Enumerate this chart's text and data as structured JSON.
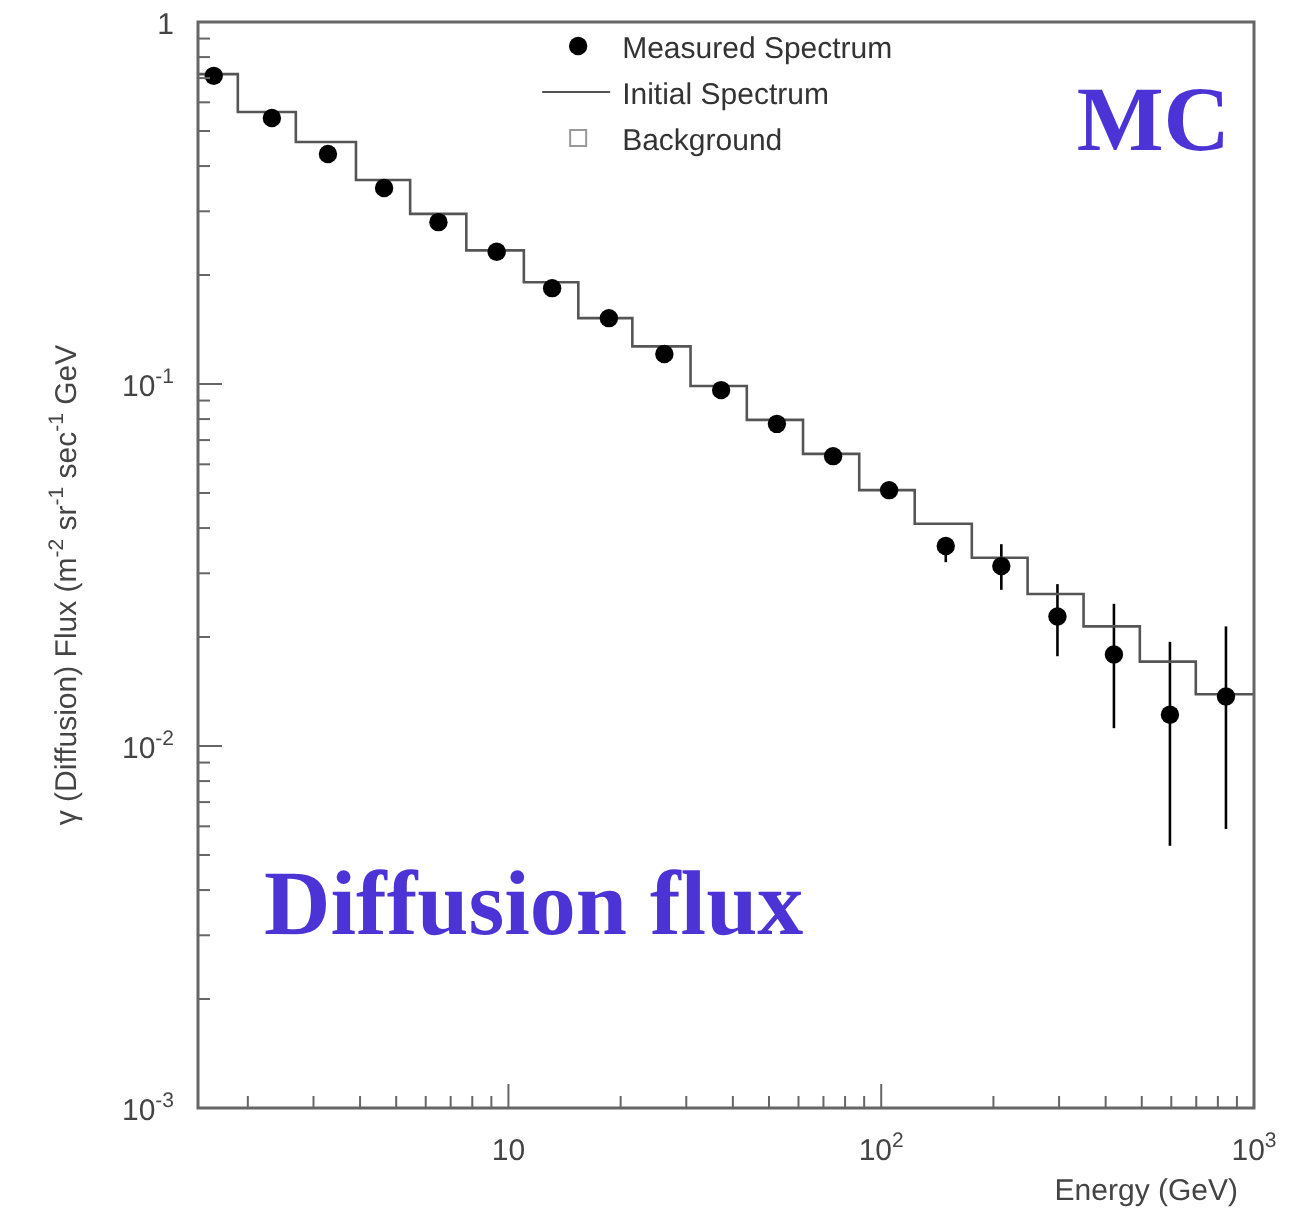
{
  "chart_data": {
    "type": "scatter",
    "xlabel": "Energy (GeV)",
    "ylabel": "γ (Diffusion) Flux (m$^{-2}$ sr$^{-1}$ sec$^{-1}$ GeV",
    "annotations": [
      "MC",
      "Diffusion flux"
    ],
    "log": "xy",
    "grid": false,
    "legend": "top right",
    "xlim": [
      1.47,
      1000
    ],
    "xticks": [
      {
        "value": 2,
        "label": null
      },
      {
        "value": 3,
        "label": null
      },
      {
        "value": 4,
        "label": null
      },
      {
        "value": 5,
        "label": null
      },
      {
        "value": 6,
        "label": null
      },
      {
        "value": 7,
        "label": null
      },
      {
        "value": 8,
        "label": null
      },
      {
        "value": 9,
        "label": null
      },
      10,
      {
        "value": 20,
        "label": null
      },
      {
        "value": 30,
        "label": null
      },
      {
        "value": 40,
        "label": null
      },
      {
        "value": 50,
        "label": null
      },
      {
        "value": 60,
        "label": null
      },
      {
        "value": 70,
        "label": null
      },
      {
        "value": 80,
        "label": null
      },
      {
        "value": 90,
        "label": null
      },
      {
        "value": 100,
        "label": "10$^{2}$"
      },
      {
        "value": 200,
        "label": null
      },
      {
        "value": 300,
        "label": null
      },
      {
        "value": 400,
        "label": null
      },
      {
        "value": 500,
        "label": null
      },
      {
        "value": 600,
        "label": null
      },
      {
        "value": 700,
        "label": null
      },
      {
        "value": 800,
        "label": null
      },
      {
        "value": 900,
        "label": null
      },
      {
        "value": 1000,
        "label": "10$^{3}$"
      }
    ],
    "ylim": [
      0.001,
      1
    ],
    "yticks": [
      {
        "value": 0.001,
        "label": "10$^{-3}$"
      },
      {
        "value": 0.002,
        "label": null
      },
      {
        "value": 0.003,
        "label": null
      },
      {
        "value": 0.004,
        "label": null
      },
      {
        "value": 0.005,
        "label": null
      },
      {
        "value": 0.006,
        "label": null
      },
      {
        "value": 0.007,
        "label": null
      },
      {
        "value": 0.008,
        "label": null
      },
      {
        "value": 0.009,
        "label": null
      },
      {
        "value": 0.01,
        "label": "10$^{-2}$"
      },
      {
        "value": 0.02,
        "label": null
      },
      {
        "value": 0.03,
        "label": null
      },
      {
        "value": 0.04,
        "label": null
      },
      {
        "value": 0.05,
        "label": null
      },
      {
        "value": 0.06,
        "label": null
      },
      {
        "value": 0.07,
        "label": null
      },
      {
        "value": 0.08,
        "label": null
      },
      {
        "value": 0.09,
        "label": null
      },
      {
        "value": 0.1,
        "label": "10$^{-1}$"
      },
      {
        "value": 0.2,
        "label": null
      },
      {
        "value": 0.3,
        "label": null
      },
      {
        "value": 0.4,
        "label": null
      },
      {
        "value": 0.5,
        "label": null
      },
      {
        "value": 0.6,
        "label": null
      },
      {
        "value": 0.7,
        "label": null
      },
      {
        "value": 0.8,
        "label": null
      },
      {
        "value": 0.9,
        "label": null
      },
      1
    ],
    "series": [
      {
        "name": "Measured Spectrum",
        "marker": "circle",
        "color": "#000000",
        "x": [
          1.62,
          2.32,
          3.28,
          4.64,
          6.49,
          9.3,
          13.1,
          18.6,
          26.2,
          37.2,
          52.5,
          74.3,
          105,
          149,
          210,
          297,
          421,
          595,
          841
        ],
        "values": [
          0.71,
          0.543,
          0.432,
          0.348,
          0.28,
          0.232,
          0.184,
          0.152,
          0.121,
          0.0962,
          0.0776,
          0.0632,
          0.0509,
          0.0357,
          0.0314,
          0.0228,
          0.0179,
          0.0122,
          0.0137
        ],
        "errors": [
          null,
          null,
          null,
          null,
          null,
          null,
          null,
          null,
          null,
          null,
          null,
          null,
          null,
          [
            0.0322,
            0.0376
          ],
          [
            0.027,
            0.0361
          ],
          [
            0.0177,
            0.028
          ],
          [
            0.0112,
            0.0247
          ],
          [
            0.0053,
            0.0194
          ],
          [
            0.0059,
            0.0214
          ]
        ]
      },
      {
        "name": "Initial Spectrum",
        "type": "step",
        "color": "#555555",
        "x": [
          1.47,
          1.88,
          2.69,
          3.9,
          5.45,
          7.71,
          11.0,
          15.4,
          21.5,
          30.8,
          43.6,
          61.7,
          87.3,
          123,
          175,
          247,
          349,
          494,
          698,
          1000
        ],
        "values": [
          0.718,
          0.564,
          0.466,
          0.366,
          0.295,
          0.234,
          0.191,
          0.152,
          0.127,
          0.0987,
          0.0796,
          0.0641,
          0.0509,
          0.0411,
          0.0331,
          0.0263,
          0.0214,
          0.0171,
          0.0139,
          0.0139
        ]
      },
      {
        "name": "Background",
        "type": "scatter",
        "marker": "square",
        "color": "#999999"
      }
    ]
  }
}
